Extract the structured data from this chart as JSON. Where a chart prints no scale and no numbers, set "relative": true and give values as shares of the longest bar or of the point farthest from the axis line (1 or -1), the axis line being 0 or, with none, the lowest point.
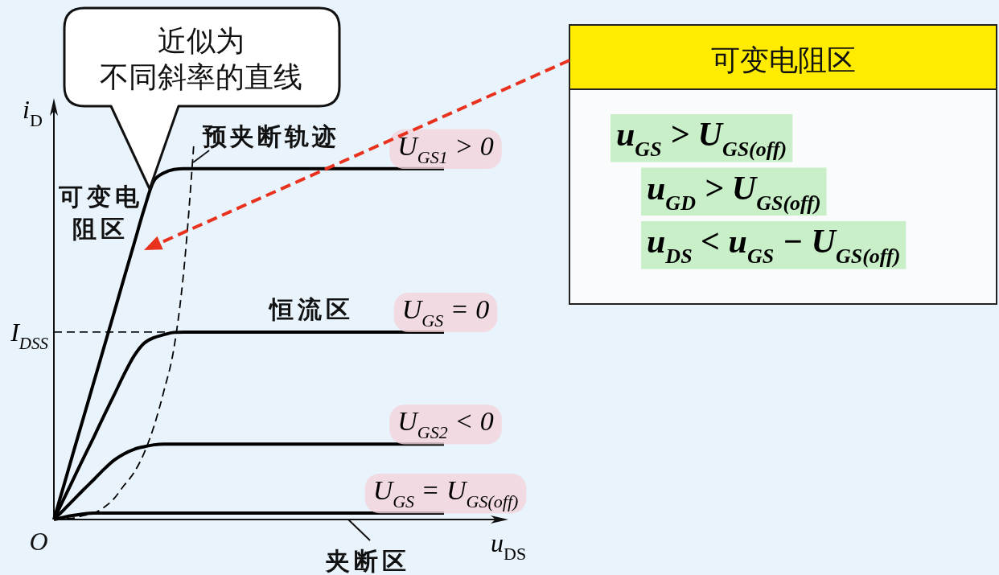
{
  "chart_data": [
    {
      "type": "line",
      "relative": true,
      "categories": [
        null,
        null,
        null,
        null,
        null,
        null,
        null,
        null,
        null,
        null,
        null,
        null,
        null,
        null,
        null,
        null,
        null,
        null,
        null,
        null,
        null,
        null,
        null,
        null,
        null,
        null,
        null,
        null,
        null,
        null,
        null,
        null,
        null,
        null,
        null,
        null,
        null,
        null,
        null,
        null
      ],
      "series": [
        {
          "name": "U$_{GS1}$ > 0",
          "color": "#000000",
          "line_style": "solid",
          "values": [
            0,
            0.091,
            0.183,
            0.274,
            0.365,
            0.456,
            0.547,
            0.639,
            0.73,
            0.821,
            0.898,
            0.919,
            0.928,
            0.93,
            0.93,
            0.93,
            0.93,
            0.93,
            0.93,
            0.93,
            0.93,
            0.93,
            0.93,
            0.93,
            0.93,
            0.93,
            0.93,
            0.93,
            0.93,
            0.93,
            0.93,
            0.93,
            0.93,
            0.93,
            0.93,
            0.93,
            0.93,
            0.93,
            0.93,
            0.93
          ]
        },
        {
          "name": "U$_{GS}$ = 0",
          "color": "#000000",
          "line_style": "solid",
          "values": [
            0,
            0.055,
            0.11,
            0.165,
            0.219,
            0.275,
            0.329,
            0.384,
            0.433,
            0.467,
            0.482,
            0.49,
            0.496,
            0.497,
            0.497,
            0.497,
            0.497,
            0.497,
            0.497,
            0.497,
            0.497,
            0.497,
            0.497,
            0.497,
            0.497,
            0.497,
            0.497,
            0.497,
            0.497,
            0.497,
            0.497,
            0.497,
            0.497,
            0.497,
            0.497,
            0.497,
            0.497,
            0.497,
            0.497,
            0.497
          ]
        },
        {
          "name": "U$_{GS2}$ < 0",
          "color": "#000000",
          "line_style": "solid",
          "values": [
            0,
            0.026,
            0.053,
            0.08,
            0.106,
            0.133,
            0.157,
            0.174,
            0.186,
            0.193,
            0.198,
            0.2,
            0.2,
            0.2,
            0.2,
            0.2,
            0.2,
            0.2,
            0.2,
            0.2,
            0.2,
            0.2,
            0.2,
            0.2,
            0.2,
            0.2,
            0.2,
            0.2,
            0.2,
            0.2,
            0.2,
            0.2,
            0.2,
            0.2,
            0.2,
            0.2,
            0.2,
            0.2,
            0.2,
            0.2
          ]
        },
        {
          "name": "U$_{GS}$ = U$_{GS(off)}$",
          "color": "#000000",
          "line_style": "solid",
          "values": [
            0,
            0.006,
            0.011,
            0.015,
            0.017,
            0.017,
            0.017,
            0.017,
            0.017,
            0.017,
            0.017,
            0.017,
            0.017,
            0.017,
            0.017,
            0.017,
            0.017,
            0.017,
            0.017,
            0.017,
            0.017,
            0.017,
            0.017,
            0.017,
            0.017,
            0.017,
            0.017,
            0.017,
            0.017,
            0.017,
            0.017,
            0.017,
            0.017,
            0.017,
            0.017,
            0.017,
            0.017,
            0.017,
            0.017,
            0.017
          ]
        },
        {
          "name": "预夹断轨迹",
          "color": "#000000",
          "line_style": "dashed",
          "values": [
            0,
            0.002,
            0.004,
            0.011,
            0.017,
            0.032,
            0.055,
            0.09,
            0.124,
            0.175,
            0.247,
            0.341,
            0.454,
            0.663,
            1,
            null,
            null,
            null,
            null,
            null,
            null,
            null,
            null,
            null,
            null,
            null,
            null,
            null,
            null,
            null,
            null,
            null,
            null,
            null,
            null,
            null,
            null,
            null,
            null,
            null
          ]
        }
      ],
      "xlabel": "u$_{DS}$",
      "ylabel": "i$_{D}$",
      "ref_lines": [
        {
          "axis": "y",
          "value": 0.497,
          "label": "I$_{DSS}$",
          "line_style": "dashed"
        }
      ],
      "annotations": [
        "近似为",
        "不同斜率的直线",
        "可变电",
        "阻区",
        "恒流区",
        "夹断区",
        "O"
      ]
    },
    {
      "type": "other",
      "title": "可变电阻区",
      "annotations": [
        "u$_{GS}$ > U$_{GS(off)}$",
        "u$_{GD}$ > U$_{GS(off)}$",
        "u$_{DS}$ < u$_{GS}$ − U$_{GS(off)}$"
      ]
    }
  ]
}
